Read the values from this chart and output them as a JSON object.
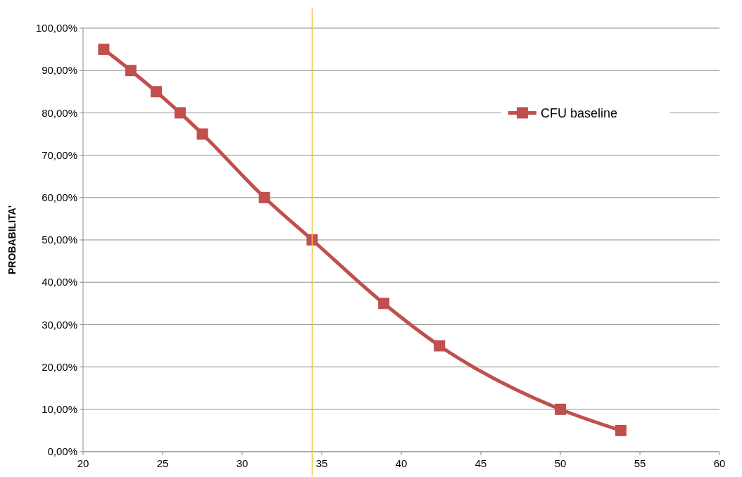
{
  "chart_data": {
    "type": "line",
    "ylabel": "PROBABILITA'",
    "x": [
      21.3,
      23,
      24.6,
      26.1,
      27.5,
      31.4,
      34.4,
      38.9,
      42.4,
      50,
      53.8
    ],
    "series": [
      {
        "name": "CFU baseline",
        "color": "#c0504d",
        "values": [
          95,
          90,
          85,
          80,
          75,
          60,
          50,
          35,
          25,
          10,
          5
        ]
      }
    ],
    "xlim": [
      20,
      60
    ],
    "xticks": [
      20,
      25,
      30,
      35,
      40,
      45,
      50,
      55,
      60
    ],
    "ylim": [
      0,
      100
    ],
    "yticks": [
      {
        "value": 0,
        "label": "0,00%"
      },
      {
        "value": 10,
        "label": "10,00%"
      },
      {
        "value": 20,
        "label": "20,00%"
      },
      {
        "value": 30,
        "label": "30,00%"
      },
      {
        "value": 40,
        "label": "40,00%"
      },
      {
        "value": 50,
        "label": "50,00%"
      },
      {
        "value": 60,
        "label": "60,00%"
      },
      {
        "value": 70,
        "label": "70,00%"
      },
      {
        "value": 80,
        "label": "80,00%"
      },
      {
        "value": 90,
        "label": "90,00%"
      },
      {
        "value": 100,
        "label": "100,00%"
      }
    ],
    "ref_lines": [
      {
        "axis": "x",
        "value": 34.4,
        "color": "#f5c242"
      }
    ],
    "grid": "y",
    "legend": "top right",
    "marker": "square",
    "line_style": "solid"
  }
}
